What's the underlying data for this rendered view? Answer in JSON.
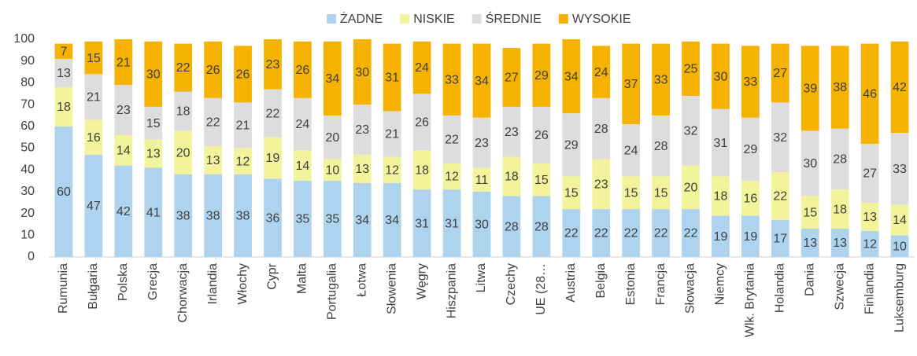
{
  "chart_data": {
    "type": "stacked_bar",
    "categories": [
      "Rumunia",
      "Bułgaria",
      "Polska",
      "Grecja",
      "Chorwacja",
      "Irlandia",
      "Włochy",
      "Cypr",
      "Malta",
      "Portugalia",
      "Łotwa",
      "Słowenia",
      "Węgry",
      "Hiszpania",
      "Litwa",
      "Czechy",
      "UE (28…",
      "Austria",
      "Belgia",
      "Estonia",
      "Francja",
      "Słowacja",
      "Niemcy",
      "Wlk. Brytania",
      "Holandia",
      "Dania",
      "Szwecja",
      "Finlandia",
      "Luksemburg"
    ],
    "series": [
      {
        "name": "ŻADNE",
        "color": "#aed3ee",
        "values": [
          60,
          47,
          42,
          41,
          38,
          38,
          38,
          36,
          35,
          35,
          34,
          34,
          31,
          31,
          30,
          28,
          28,
          22,
          22,
          22,
          22,
          22,
          19,
          19,
          17,
          13,
          13,
          12,
          10
        ]
      },
      {
        "name": "NISKIE",
        "color": "#f3f39b",
        "values": [
          18,
          16,
          14,
          13,
          20,
          13,
          12,
          19,
          14,
          10,
          13,
          12,
          18,
          12,
          11,
          18,
          15,
          15,
          23,
          15,
          15,
          20,
          18,
          16,
          22,
          15,
          18,
          13,
          14
        ]
      },
      {
        "name": "ŚREDNIE",
        "color": "#dddddd",
        "values": [
          13,
          21,
          23,
          15,
          18,
          22,
          21,
          22,
          24,
          20,
          23,
          21,
          26,
          22,
          23,
          23,
          26,
          29,
          28,
          24,
          28,
          32,
          31,
          29,
          32,
          30,
          28,
          27,
          33
        ]
      },
      {
        "name": "WYSOKIE",
        "color": "#f6b200",
        "values": [
          7,
          15,
          21,
          30,
          22,
          26,
          26,
          23,
          26,
          34,
          30,
          31,
          24,
          33,
          34,
          27,
          29,
          34,
          24,
          37,
          33,
          25,
          30,
          33,
          27,
          39,
          38,
          46,
          42
        ]
      }
    ],
    "ylim": [
      0,
      100
    ],
    "yticks": [
      0,
      10,
      20,
      30,
      40,
      50,
      60,
      70,
      80,
      90,
      100
    ],
    "legend": "top"
  }
}
